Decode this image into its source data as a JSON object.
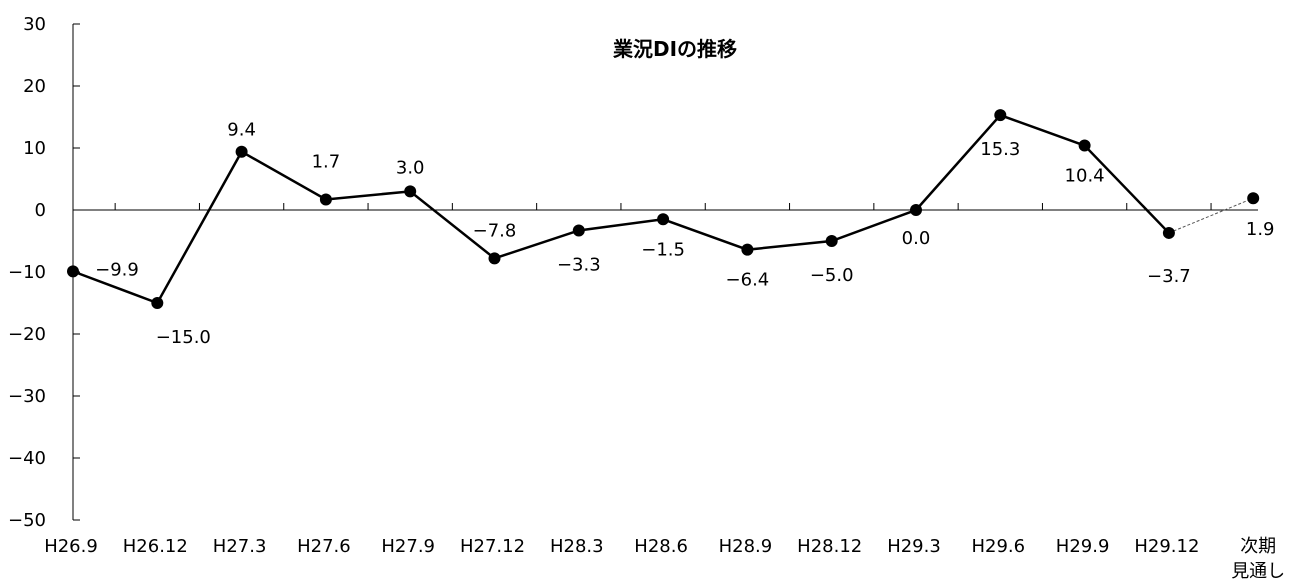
{
  "chart_data": {
    "type": "line",
    "title": "業況DIの推移",
    "xlabel": "",
    "ylabel": "",
    "ylim": [
      -50,
      30
    ],
    "yticks": [
      30,
      20,
      10,
      0,
      -10,
      -20,
      -30,
      -40,
      -50
    ],
    "categories": [
      "H26.9",
      "H26.12",
      "H27.3",
      "H27.6",
      "H27.9",
      "H27.12",
      "H28.3",
      "H28.6",
      "H28.9",
      "H28.12",
      "H29.3",
      "H29.6",
      "H29.9",
      "H29.12",
      "次期見通し"
    ],
    "category_lines": [
      [
        "H26.9"
      ],
      [
        "H26.12"
      ],
      [
        "H27.3"
      ],
      [
        "H27.6"
      ],
      [
        "H27.9"
      ],
      [
        "H27.12"
      ],
      [
        "H28.3"
      ],
      [
        "H28.6"
      ],
      [
        "H28.9"
      ],
      [
        "H28.12"
      ],
      [
        "H29.3"
      ],
      [
        "H29.6"
      ],
      [
        "H29.9"
      ],
      [
        "H29.12"
      ],
      [
        "次期",
        "見通し"
      ]
    ],
    "values": [
      -9.9,
      -15.0,
      9.4,
      1.7,
      3.0,
      -7.8,
      -3.3,
      -1.5,
      -6.4,
      -5.0,
      0.0,
      15.3,
      10.4,
      -3.7,
      1.9
    ],
    "labels": [
      "−9.9",
      "−15.0",
      "9.4",
      "1.7",
      "3.0",
      "−7.8",
      "−3.3",
      "−1.5",
      "−6.4",
      "−5.0",
      "0.0",
      "15.3",
      "10.4",
      "−3.7",
      "1.9"
    ],
    "forecast_segment": "dashed",
    "grid": false,
    "legend": "none",
    "colors": {
      "line": "#000000",
      "marker": "#000000",
      "forecast_line": "#555555"
    }
  }
}
